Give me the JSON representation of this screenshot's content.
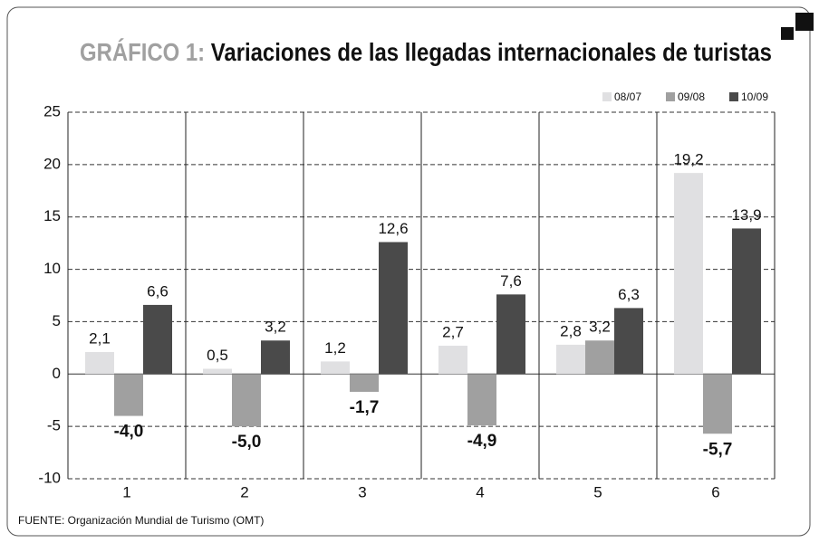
{
  "chart_data": {
    "type": "bar",
    "title": [
      "GRÁFICO 1:",
      "Variaciones de las llegadas internacionales de turistas"
    ],
    "categories": [
      "1",
      "2",
      "3",
      "4",
      "5",
      "6"
    ],
    "series": [
      {
        "name": "08/07",
        "color": "#e0e0e2",
        "values": [
          2.1,
          0.5,
          1.2,
          2.7,
          2.8,
          19.2
        ],
        "value_labels": [
          "2,1",
          "0,5",
          "1,2",
          "2,7",
          "2,8",
          "19,2"
        ]
      },
      {
        "name": "09/08",
        "color": "#a0a0a0",
        "values": [
          -4.0,
          -5.0,
          -1.7,
          -4.9,
          3.2,
          -5.7
        ],
        "value_labels": [
          "-4,0",
          "-5,0",
          "-1,7",
          "-4,9",
          "3,2",
          "-5,7"
        ]
      },
      {
        "name": "10/09",
        "color": "#4a4a4a",
        "values": [
          6.6,
          3.2,
          12.6,
          7.6,
          6.3,
          13.9
        ],
        "value_labels": [
          "6,6",
          "3,2",
          "12,6",
          "7,6",
          "6,3",
          "13,9"
        ]
      }
    ],
    "ylim": [
      -10,
      25
    ],
    "yticks": [
      25,
      20,
      15,
      10,
      5,
      0,
      -5,
      -10
    ],
    "grid": true,
    "legend": "top-right",
    "source": "FUENTE: Organización Mundial de Turismo (OMT)"
  }
}
